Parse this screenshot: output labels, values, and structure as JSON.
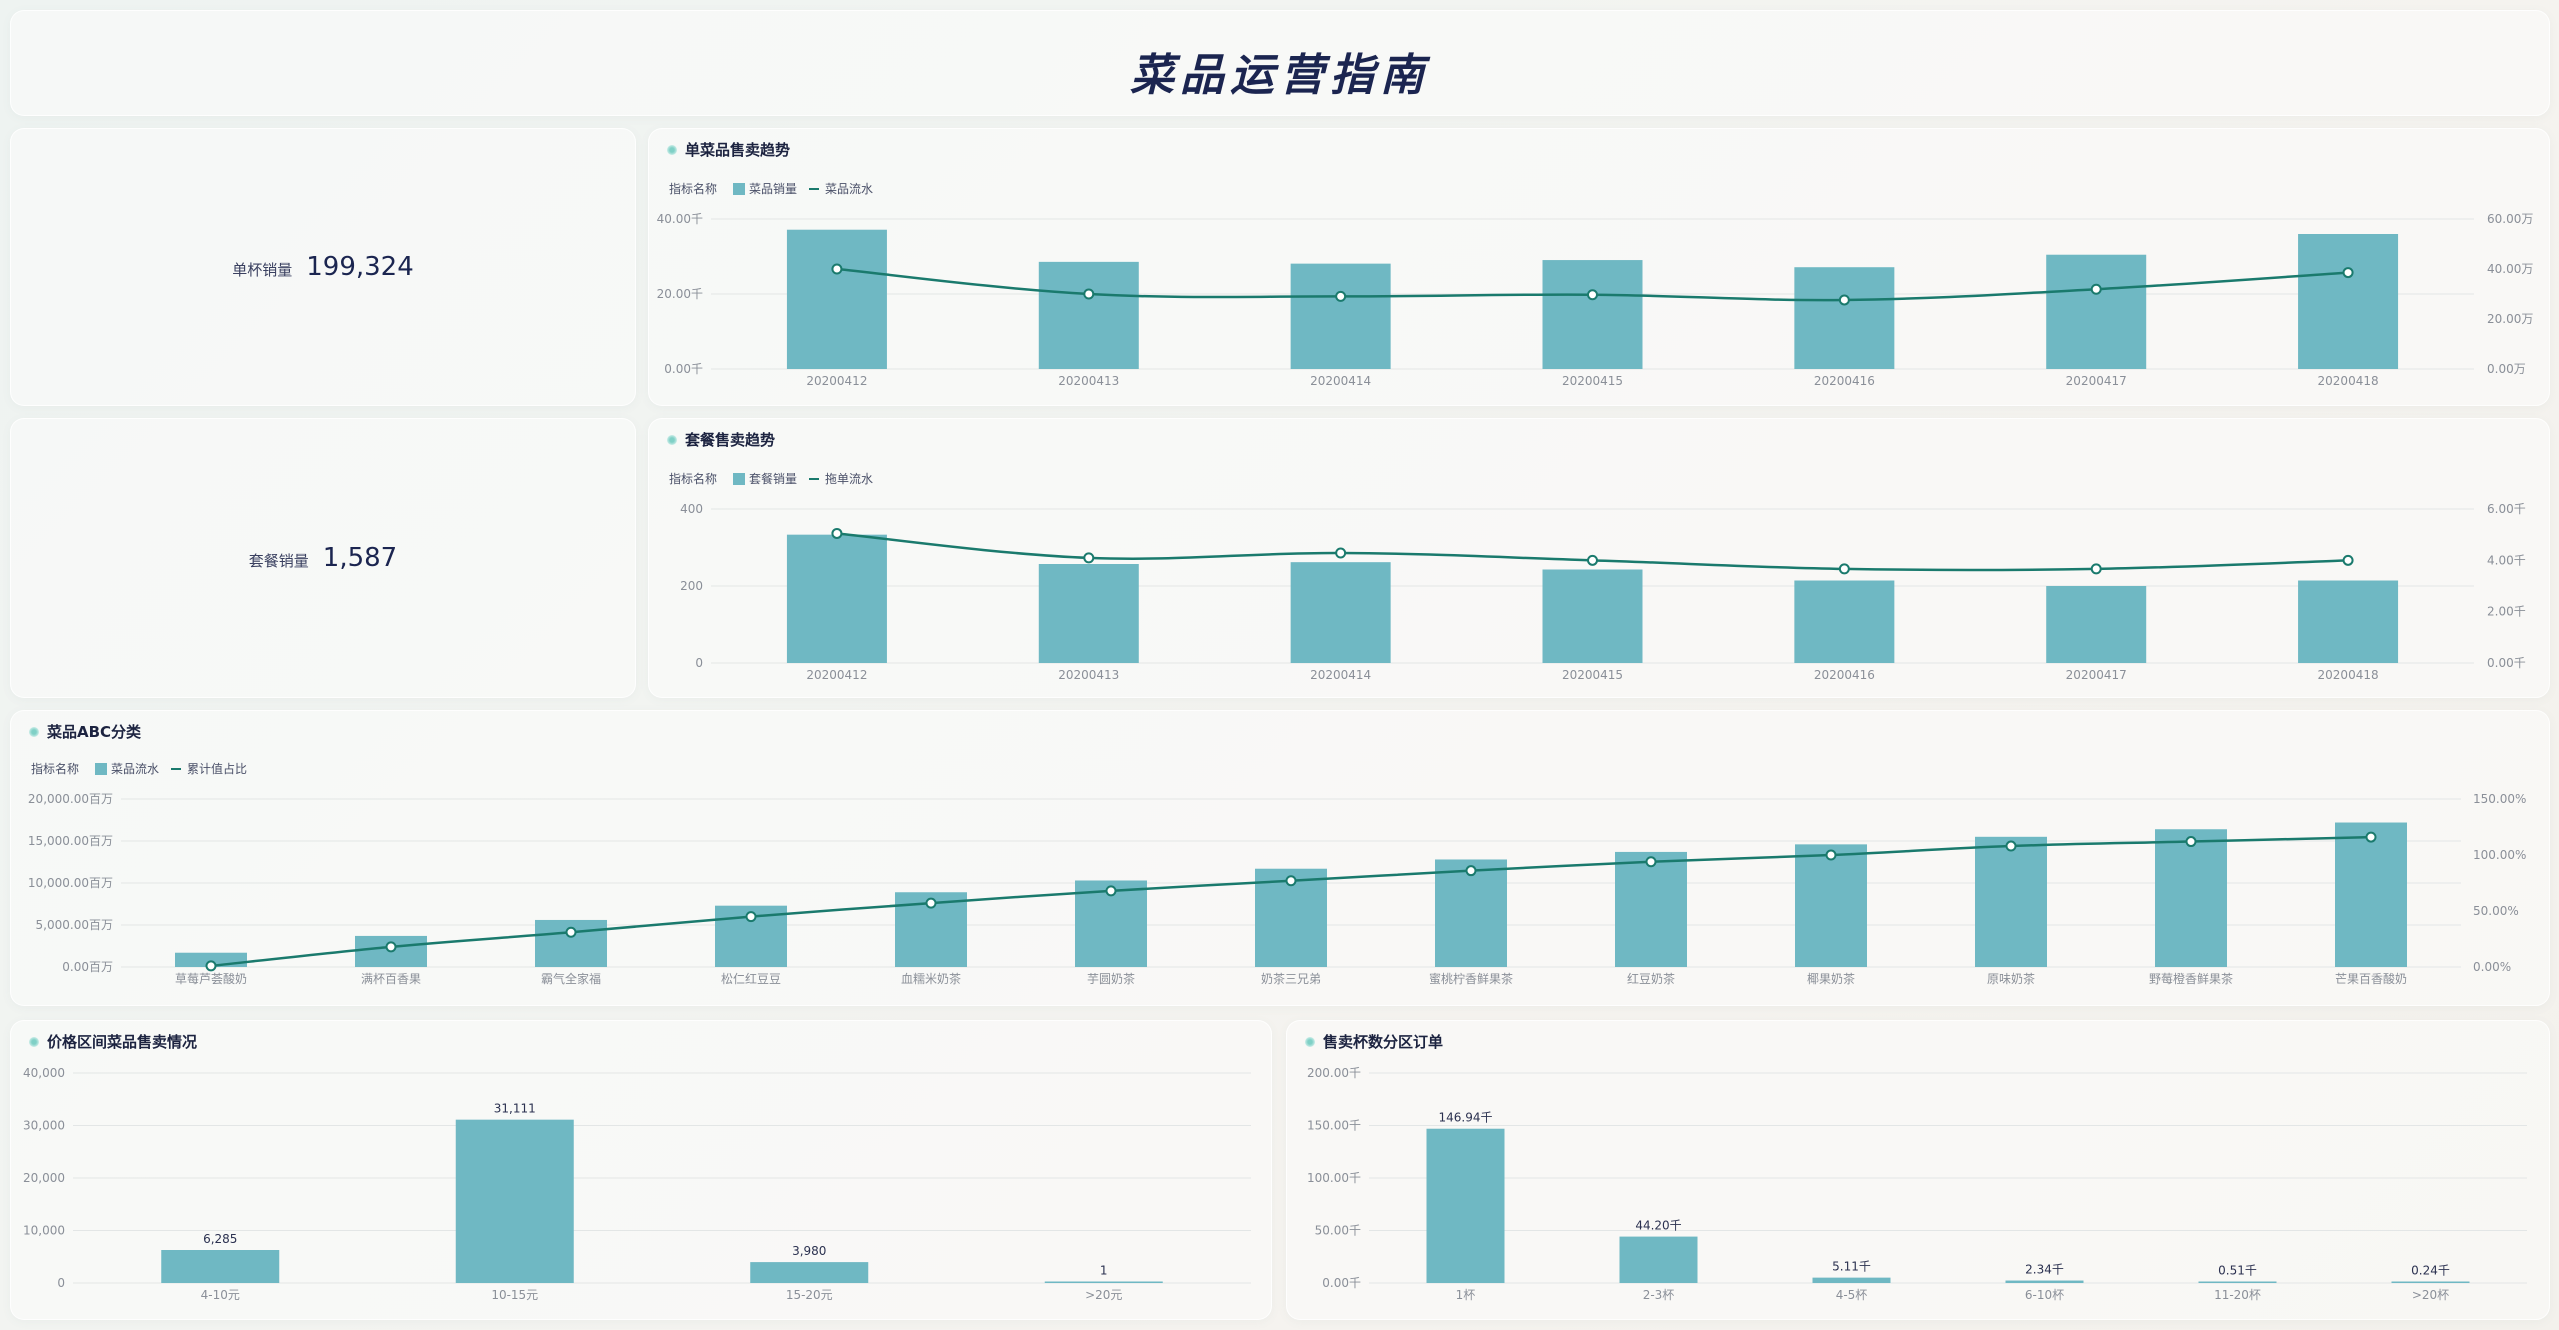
{
  "header": {
    "title": "菜品运营指南"
  },
  "kpis": [
    {
      "label": "单杯销量",
      "value": "199,324"
    },
    {
      "label": "套餐销量",
      "value": "1,587"
    }
  ],
  "legend_prefix": "指标名称",
  "colors": {
    "bar": "#6fb8c3",
    "line": "#1a7a6d",
    "grid": "#e3e6e6",
    "axis": "#8a8f98"
  },
  "chart_data": [
    {
      "id": "c1",
      "title": "单菜品售卖趋势",
      "type": "bar+line",
      "categories": [
        "20200412",
        "20200413",
        "20200414",
        "20200415",
        "20200416",
        "20200417",
        "20200418"
      ],
      "series": [
        {
          "name": "菜品销量",
          "kind": "bar",
          "axis": "left",
          "values": [
            39000,
            30000,
            29500,
            30500,
            28500,
            32000,
            37800
          ]
        },
        {
          "name": "菜品流水",
          "kind": "line",
          "axis": "right",
          "values": [
            420000,
            315000,
            305000,
            312000,
            290000,
            335000,
            405000
          ]
        }
      ],
      "left_ticks": [
        "40.00千",
        "20.00千",
        "0.00千"
      ],
      "left_range": [
        0,
        42000
      ],
      "right_ticks": [
        "60.00万",
        "40.00万",
        "20.00万",
        "0.00万"
      ],
      "right_range": [
        0,
        630000
      ]
    },
    {
      "id": "c2",
      "title": "套餐售卖趋势",
      "type": "bar+line",
      "categories": [
        "20200412",
        "20200413",
        "20200414",
        "20200415",
        "20200416",
        "20200417",
        "20200418"
      ],
      "series": [
        {
          "name": "套餐销量",
          "kind": "bar",
          "axis": "left",
          "values": [
            350,
            270,
            275,
            255,
            225,
            210,
            225
          ]
        },
        {
          "name": "拖单流水",
          "kind": "line",
          "axis": "right",
          "values": [
            53000,
            43000,
            45000,
            42000,
            38500,
            38500,
            42000
          ]
        }
      ],
      "left_ticks": [
        "400",
        "200",
        "0"
      ],
      "left_range": [
        0,
        420
      ],
      "right_ticks": [
        "6.00千",
        "4.00千",
        "2.00千",
        "0.00千"
      ],
      "right_range": [
        0,
        63000
      ]
    },
    {
      "id": "c3",
      "title": "菜品ABC分类",
      "type": "bar+line",
      "categories": [
        "草莓芦荟酸奶",
        "满杯百香果",
        "霸气全家福",
        "松仁红豆豆",
        "血糯米奶茶",
        "芋圆奶茶",
        "奶茶三兄弟",
        "蜜桃柠香鲜果茶",
        "红豆奶茶",
        "椰果奶茶",
        "原味奶茶",
        "野莓橙香鲜果茶",
        "芒果百香酸奶"
      ],
      "series": [
        {
          "name": "菜品流水",
          "kind": "bar",
          "axis": "left",
          "values": [
            1700,
            3700,
            5600,
            7300,
            8900,
            10300,
            11700,
            12800,
            13700,
            14600,
            15500,
            16400,
            17200
          ]
        },
        {
          "name": "累计值占比",
          "kind": "line",
          "axis": "right",
          "values": [
            1,
            18,
            31,
            45,
            57,
            68,
            77,
            86,
            94,
            100,
            108,
            112,
            116
          ]
        }
      ],
      "left_ticks": [
        "20,000.00百万",
        "15,000.00百万",
        "10,000.00百万",
        "5,000.00百万",
        "0.00百万"
      ],
      "left_range": [
        0,
        20000
      ],
      "right_ticks": [
        "150.00%",
        "100.00%",
        "50.00%",
        "0.00%"
      ],
      "right_range": [
        0,
        150
      ]
    },
    {
      "id": "c4",
      "title": "价格区间菜品售卖情况",
      "type": "bar",
      "categories": [
        "4-10元",
        "10-15元",
        "15-20元",
        ">20元"
      ],
      "series": [
        {
          "name": "",
          "kind": "bar",
          "axis": "left",
          "values": [
            6285,
            31111,
            3980,
            1
          ],
          "labels": [
            "6,285",
            "31,111",
            "3,980",
            "1"
          ]
        }
      ],
      "left_ticks": [
        "40,000",
        "30,000",
        "20,000",
        "10,000",
        "0"
      ],
      "left_range": [
        0,
        40000
      ]
    },
    {
      "id": "c5",
      "title": "售卖杯数分区订单",
      "type": "bar",
      "categories": [
        "1杯",
        "2-3杯",
        "4-5杯",
        "6-10杯",
        "11-20杯",
        ">20杯"
      ],
      "series": [
        {
          "name": "",
          "kind": "bar",
          "axis": "left",
          "values": [
            146940,
            44200,
            5110,
            2340,
            510,
            240
          ],
          "labels": [
            "146.94千",
            "44.20千",
            "5.11千",
            "2.34千",
            "0.51千",
            "0.24千"
          ]
        }
      ],
      "left_ticks": [
        "200.00千",
        "150.00千",
        "100.00千",
        "50.00千",
        "0.00千"
      ],
      "left_range": [
        0,
        200000
      ]
    }
  ]
}
